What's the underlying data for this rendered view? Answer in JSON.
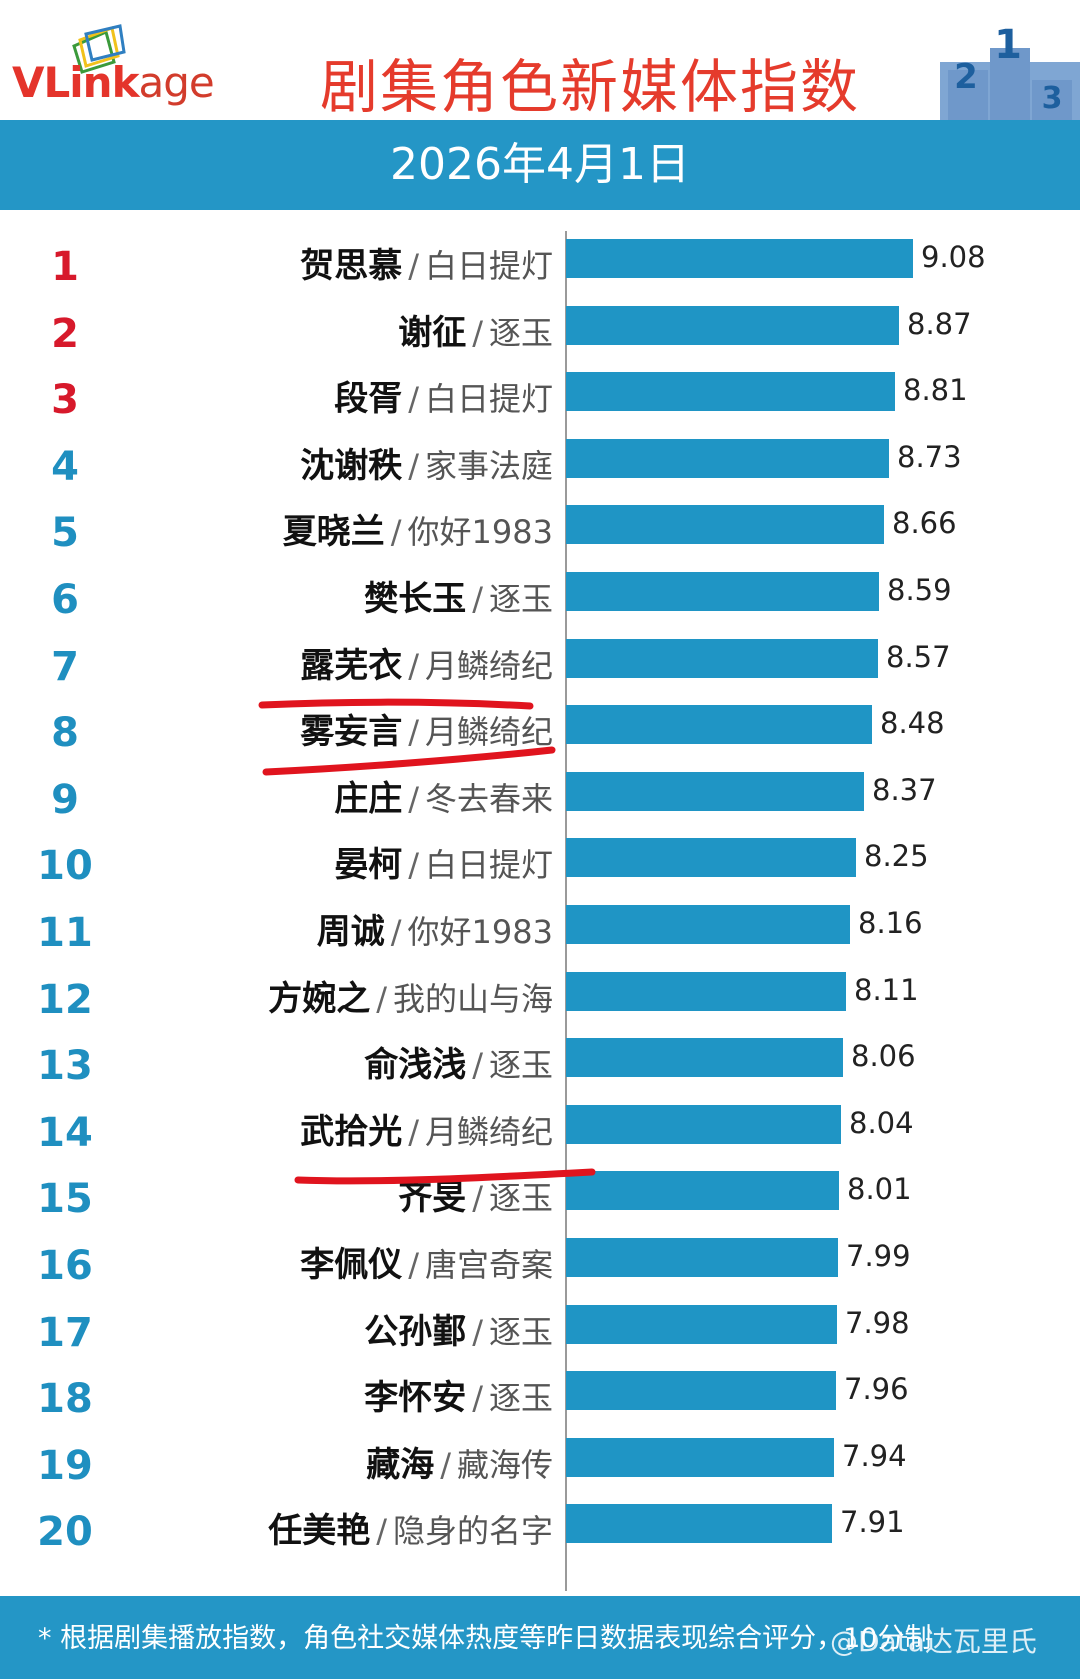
{
  "header": {
    "logo_text_v": "V",
    "logo_text_link": "Link",
    "logo_text_age": "age",
    "title": "剧集角色新媒体指数",
    "podium": [
      "2",
      "1",
      "3"
    ]
  },
  "date": "2026年4月1日",
  "footer": {
    "note": "* 根据剧集播放指数，角色社交媒体热度等昨日数据表现综合评分，10分制",
    "watermark": "@Data达瓦里氏"
  },
  "colors": {
    "bar": "#1f95c5",
    "banner": "#2496c6",
    "title": "#e53b2c",
    "rank_top3": "#d7192b",
    "rank_rest": "#1f8fc0",
    "annotation": "#e0141e"
  },
  "chart_data": {
    "type": "bar",
    "orientation": "horizontal",
    "xlim": [
      0,
      10
    ],
    "ranks": [
      "1",
      "2",
      "3",
      "4",
      "5",
      "6",
      "7",
      "8",
      "9",
      "10",
      "11",
      "12",
      "13",
      "14",
      "15",
      "16",
      "17",
      "18",
      "19",
      "20"
    ],
    "names": [
      "贺思慕",
      "谢征",
      "段胥",
      "沈谢秩",
      "夏晓兰",
      "樊长玉",
      "露芜衣",
      "雾妄言",
      "庄庄",
      "晏柯",
      "周诚",
      "方婉之",
      "俞浅浅",
      "武拾光",
      "齐旻",
      "李佩仪",
      "公孙鄞",
      "李怀安",
      "藏海",
      "任美艳"
    ],
    "dramas": [
      "白日提灯",
      "逐玉",
      "白日提灯",
      "家事法庭",
      "你好1983",
      "逐玉",
      "月鳞绮纪",
      "月鳞绮纪",
      "冬去春来",
      "白日提灯",
      "你好1983",
      "我的山与海",
      "逐玉",
      "月鳞绮纪",
      "逐玉",
      "唐宫奇案",
      "逐玉",
      "逐玉",
      "藏海传",
      "隐身的名字"
    ],
    "values": [
      9.08,
      8.87,
      8.81,
      8.73,
      8.66,
      8.59,
      8.57,
      8.48,
      8.37,
      8.25,
      8.16,
      8.11,
      8.06,
      8.04,
      8.01,
      7.99,
      7.98,
      7.96,
      7.94,
      7.91
    ],
    "value_labels": [
      "9.08",
      "8.87",
      "8.81",
      "8.73",
      "8.66",
      "8.59",
      "8.57",
      "8.48",
      "8.37",
      "8.25",
      "8.16",
      "8.11",
      "8.06",
      "8.04",
      "8.01",
      "7.99",
      "7.98",
      "7.96",
      "7.94",
      "7.91"
    ],
    "separator": "/",
    "annotations": {
      "type": "hand-drawn red underline",
      "underlined_rows": [
        7,
        8,
        14
      ]
    }
  }
}
